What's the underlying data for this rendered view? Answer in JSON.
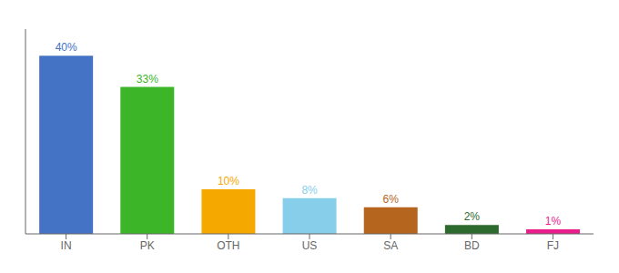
{
  "chart_data": {
    "type": "bar",
    "categories": [
      "IN",
      "PK",
      "OTH",
      "US",
      "SA",
      "BD",
      "FJ"
    ],
    "values": [
      40,
      33,
      10,
      8,
      6,
      2,
      1
    ],
    "value_labels": [
      "40%",
      "33%",
      "10%",
      "8%",
      "6%",
      "2%",
      "1%"
    ],
    "colors": [
      "#4472C4",
      "#3CB528",
      "#F5A800",
      "#87CEEB",
      "#B5651D",
      "#2D6A2D",
      "#E91E8C"
    ],
    "ylim": [
      0,
      46
    ],
    "grid": false,
    "data_labels": true,
    "tick_labels": "x"
  }
}
